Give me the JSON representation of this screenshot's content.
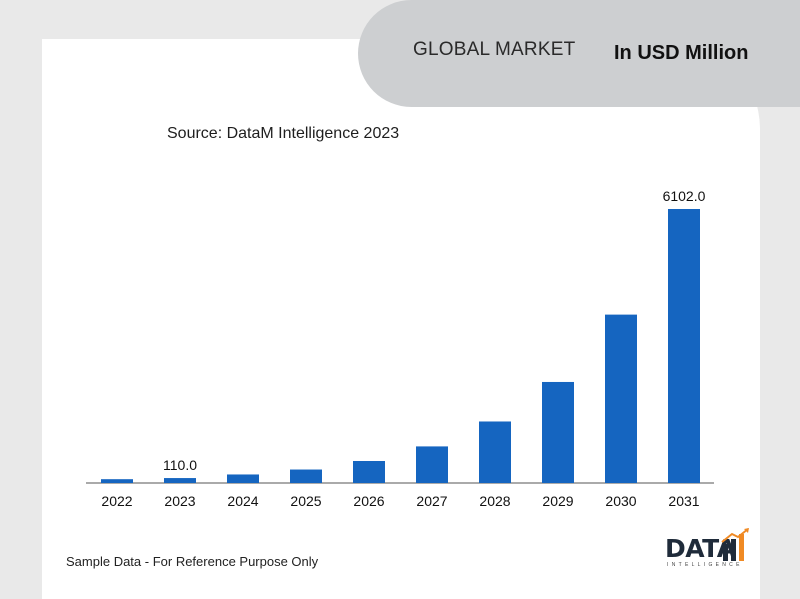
{
  "header": {
    "title": "GLOBAL MARKET",
    "unit_label": "In USD Million"
  },
  "source_note": "Source: DataM Intelligence 2023",
  "footer_note": "Sample Data - For Reference Purpose Only",
  "logo": {
    "text": "DATA",
    "subtext": "INTELLIGENCE",
    "icon": "bar-chart-arrow-icon"
  },
  "colors": {
    "bar": "#1565c0",
    "background": "#e9e9e9",
    "header_pill": "#cdcfd1",
    "logo_orange": "#f08a24"
  },
  "chart_data": {
    "type": "bar",
    "title": "",
    "xlabel": "",
    "ylabel": "",
    "categories": [
      "2022",
      "2023",
      "2024",
      "2025",
      "2026",
      "2027",
      "2028",
      "2029",
      "2030",
      "2031"
    ],
    "values": [
      85,
      110.0,
      190,
      300,
      490,
      815,
      1370,
      2250,
      3750,
      6102.0
    ],
    "data_labels": [
      "",
      "110.0",
      "",
      "",
      "",
      "",
      "",
      "",
      "",
      "6102.0"
    ],
    "ylim": [
      0,
      6102.0
    ],
    "grid": false,
    "legend": "none"
  }
}
